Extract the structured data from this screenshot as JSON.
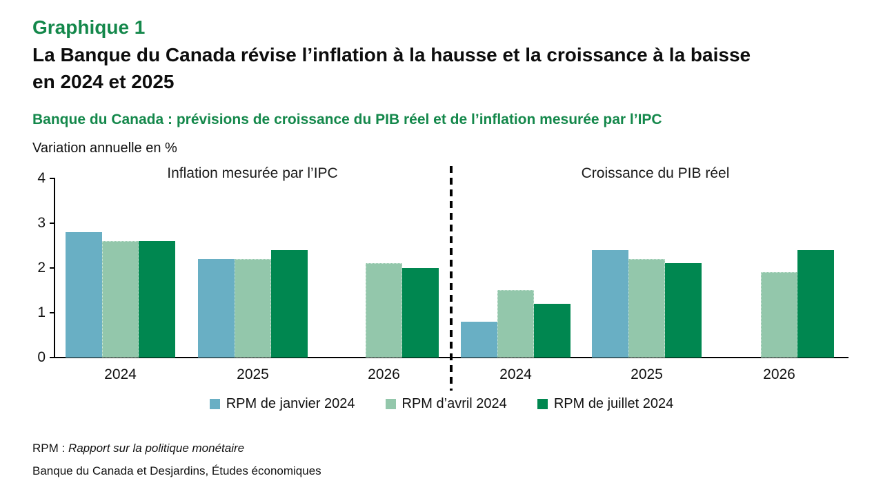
{
  "page": {
    "chart_number": "Graphique 1",
    "title_line1": "La Banque du Canada révise l’inflation à la hausse et la croissance à la baisse",
    "title_line2": "en 2024 et 2025",
    "subtitle": "Banque du Canada : prévisions de croissance du PIB réel et de l’inflation mesurée par l’IPC",
    "unit_label": "Variation annuelle en %",
    "footnote_prefix": "RPM : ",
    "footnote_italic": "Rapport sur la politique monétaire",
    "source": "Banque du Canada et Desjardins, Études économiques"
  },
  "colors": {
    "heading_green": "#14884B",
    "rpm_janvier": "#69AFC4",
    "rpm_avril": "#93C7AB",
    "rpm_juillet": "#008750",
    "axis_black": "#000000"
  },
  "chart_data": {
    "type": "bar",
    "title": "Banque du Canada : prévisions de croissance du PIB réel et de l’inflation mesurée par l’IPC",
    "ylabel": "Variation annuelle en %",
    "ylim": [
      0,
      4
    ],
    "yticks": [
      0,
      1,
      2,
      3,
      4
    ],
    "grid": false,
    "legend_position": "bottom",
    "categories": [
      "2024",
      "2025",
      "2026"
    ],
    "legend": [
      "RPM de janvier 2024",
      "RPM d’avril 2024",
      "RPM de juillet 2024"
    ],
    "panels": [
      {
        "title": "Inflation mesurée par l’IPC",
        "series": [
          {
            "name": "RPM de janvier 2024",
            "color": "#69AFC4",
            "values": [
              2.8,
              2.2,
              null
            ]
          },
          {
            "name": "RPM d’avril 2024",
            "color": "#93C7AB",
            "values": [
              2.6,
              2.2,
              2.1
            ]
          },
          {
            "name": "RPM de juillet 2024",
            "color": "#008750",
            "values": [
              2.6,
              2.4,
              2.0
            ]
          }
        ]
      },
      {
        "title": "Croissance du PIB réel",
        "series": [
          {
            "name": "RPM de janvier 2024",
            "color": "#69AFC4",
            "values": [
              0.8,
              2.4,
              null
            ]
          },
          {
            "name": "RPM d’avril 2024",
            "color": "#93C7AB",
            "values": [
              1.5,
              2.2,
              1.9
            ]
          },
          {
            "name": "RPM de juillet 2024",
            "color": "#008750",
            "values": [
              1.2,
              2.1,
              2.4
            ]
          }
        ]
      }
    ]
  }
}
